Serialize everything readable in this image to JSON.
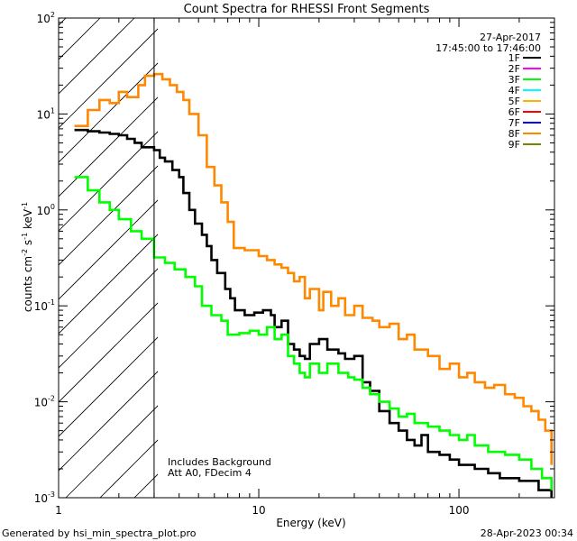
{
  "footer": {
    "left": "Generated by hsi_min_spectra_plot.pro",
    "right": "28-Apr-2023 00:34"
  },
  "chart_data": {
    "type": "line",
    "title": "Count Spectra for RHESSI Front Segments",
    "xlabel": "Energy (keV)",
    "ylabel_parts": {
      "base": "counts cm",
      "e1": "-2",
      "mid1": " s",
      "e2": "-1",
      "mid2": " keV",
      "e3": "-1"
    },
    "xscale": "log",
    "yscale": "log",
    "xlim": [
      1,
      300
    ],
    "ylim": [
      0.001,
      100
    ],
    "x_ticks": [
      {
        "v": 1,
        "label": "1"
      },
      {
        "v": 10,
        "label": "10"
      },
      {
        "v": 100,
        "label": "100"
      }
    ],
    "y_ticks": [
      {
        "v": 0.001,
        "base": "10",
        "exp": "-3"
      },
      {
        "v": 0.01,
        "base": "10",
        "exp": "-2"
      },
      {
        "v": 0.1,
        "base": "10",
        "exp": "-1"
      },
      {
        "v": 1,
        "base": "10",
        "exp": "0"
      },
      {
        "v": 10,
        "base": "10",
        "exp": "1"
      },
      {
        "v": 100,
        "base": "10",
        "exp": "2"
      }
    ],
    "hatched_region": {
      "x_range": [
        1,
        3
      ]
    },
    "vertical_line_x": 3,
    "legend": {
      "header": [
        "27-Apr-2017",
        "17:45:00 to 17:46:00"
      ],
      "position": "top-right",
      "entries": [
        {
          "name": "1F",
          "color": "#000000"
        },
        {
          "name": "2F",
          "color": "#ff00ff"
        },
        {
          "name": "3F",
          "color": "#00ff00"
        },
        {
          "name": "4F",
          "color": "#00ffff"
        },
        {
          "name": "5F",
          "color": "#ffb000"
        },
        {
          "name": "6F",
          "color": "#ff0000"
        },
        {
          "name": "7F",
          "color": "#0000ff"
        },
        {
          "name": "8F",
          "color": "#ff8800"
        },
        {
          "name": "9F",
          "color": "#808000"
        }
      ]
    },
    "annotation": [
      "Includes Background",
      "Att A0, FDecim 4"
    ],
    "series": [
      {
        "name": "8F",
        "color": "#ff8800",
        "points": [
          [
            1.2,
            7.5
          ],
          [
            1.4,
            11
          ],
          [
            1.6,
            14
          ],
          [
            1.8,
            13
          ],
          [
            2.0,
            17
          ],
          [
            2.2,
            15
          ],
          [
            2.5,
            20
          ],
          [
            2.7,
            25
          ],
          [
            3.0,
            26
          ],
          [
            3.3,
            23
          ],
          [
            3.6,
            20
          ],
          [
            3.9,
            17
          ],
          [
            4.2,
            14
          ],
          [
            4.5,
            10
          ],
          [
            5.0,
            6
          ],
          [
            5.5,
            2.8
          ],
          [
            6.0,
            1.8
          ],
          [
            6.5,
            1.2
          ],
          [
            7.0,
            0.75
          ],
          [
            7.5,
            0.4
          ],
          [
            8.5,
            0.38
          ],
          [
            10,
            0.33
          ],
          [
            11,
            0.3
          ],
          [
            12,
            0.27
          ],
          [
            13,
            0.25
          ],
          [
            14,
            0.22
          ],
          [
            15,
            0.18
          ],
          [
            16,
            0.2
          ],
          [
            17,
            0.12
          ],
          [
            18,
            0.15
          ],
          [
            20,
            0.09
          ],
          [
            21,
            0.14
          ],
          [
            23,
            0.1
          ],
          [
            25,
            0.12
          ],
          [
            27,
            0.08
          ],
          [
            30,
            0.1
          ],
          [
            33,
            0.075
          ],
          [
            37,
            0.07
          ],
          [
            40,
            0.06
          ],
          [
            45,
            0.065
          ],
          [
            50,
            0.045
          ],
          [
            55,
            0.05
          ],
          [
            60,
            0.035
          ],
          [
            70,
            0.03
          ],
          [
            80,
            0.022
          ],
          [
            90,
            0.025
          ],
          [
            100,
            0.018
          ],
          [
            110,
            0.02
          ],
          [
            120,
            0.016
          ],
          [
            135,
            0.014
          ],
          [
            150,
            0.015
          ],
          [
            170,
            0.012
          ],
          [
            190,
            0.011
          ],
          [
            210,
            0.009
          ],
          [
            230,
            0.008
          ],
          [
            250,
            0.0065
          ],
          [
            270,
            0.005
          ],
          [
            290,
            0.0022
          ]
        ]
      },
      {
        "name": "1F",
        "color": "#000000",
        "points": [
          [
            1.2,
            6.8
          ],
          [
            1.4,
            6.6
          ],
          [
            1.6,
            6.4
          ],
          [
            1.8,
            6.2
          ],
          [
            2.0,
            6.0
          ],
          [
            2.2,
            5.5
          ],
          [
            2.4,
            5.0
          ],
          [
            2.6,
            4.5
          ],
          [
            3.0,
            4.2
          ],
          [
            3.2,
            3.5
          ],
          [
            3.4,
            3.2
          ],
          [
            3.7,
            2.6
          ],
          [
            4.0,
            2.2
          ],
          [
            4.2,
            1.5
          ],
          [
            4.5,
            1.0
          ],
          [
            4.8,
            0.72
          ],
          [
            5.2,
            0.55
          ],
          [
            5.5,
            0.42
          ],
          [
            5.8,
            0.3
          ],
          [
            6.2,
            0.22
          ],
          [
            6.8,
            0.15
          ],
          [
            7.2,
            0.12
          ],
          [
            7.6,
            0.09
          ],
          [
            8.5,
            0.08
          ],
          [
            9.5,
            0.085
          ],
          [
            10.5,
            0.09
          ],
          [
            11.5,
            0.08
          ],
          [
            12,
            0.06
          ],
          [
            13,
            0.07
          ],
          [
            14,
            0.04
          ],
          [
            15,
            0.035
          ],
          [
            16,
            0.03
          ],
          [
            17,
            0.028
          ],
          [
            18,
            0.04
          ],
          [
            20,
            0.045
          ],
          [
            22,
            0.035
          ],
          [
            25,
            0.032
          ],
          [
            27,
            0.028
          ],
          [
            30,
            0.03
          ],
          [
            33,
            0.016
          ],
          [
            36,
            0.013
          ],
          [
            40,
            0.008
          ],
          [
            45,
            0.006
          ],
          [
            50,
            0.005
          ],
          [
            55,
            0.004
          ],
          [
            60,
            0.0035
          ],
          [
            65,
            0.0045
          ],
          [
            70,
            0.003
          ],
          [
            80,
            0.0028
          ],
          [
            90,
            0.0025
          ],
          [
            100,
            0.0022
          ],
          [
            120,
            0.002
          ],
          [
            140,
            0.0018
          ],
          [
            160,
            0.0016
          ],
          [
            200,
            0.0015
          ],
          [
            250,
            0.0012
          ],
          [
            290,
            0.001
          ]
        ]
      },
      {
        "name": "3F",
        "color": "#00ff00",
        "points": [
          [
            1.2,
            2.2
          ],
          [
            1.4,
            1.6
          ],
          [
            1.6,
            1.2
          ],
          [
            1.8,
            1.0
          ],
          [
            2.0,
            0.8
          ],
          [
            2.3,
            0.6
          ],
          [
            2.6,
            0.5
          ],
          [
            3.0,
            0.32
          ],
          [
            3.4,
            0.28
          ],
          [
            3.8,
            0.24
          ],
          [
            4.3,
            0.2
          ],
          [
            4.8,
            0.16
          ],
          [
            5.2,
            0.1
          ],
          [
            5.8,
            0.08
          ],
          [
            6.5,
            0.07
          ],
          [
            7.0,
            0.05
          ],
          [
            8.0,
            0.052
          ],
          [
            9.0,
            0.055
          ],
          [
            10,
            0.05
          ],
          [
            11,
            0.06
          ],
          [
            12,
            0.045
          ],
          [
            13,
            0.05
          ],
          [
            14,
            0.03
          ],
          [
            15,
            0.025
          ],
          [
            16,
            0.02
          ],
          [
            17,
            0.018
          ],
          [
            18,
            0.025
          ],
          [
            20,
            0.02
          ],
          [
            22,
            0.025
          ],
          [
            25,
            0.02
          ],
          [
            28,
            0.018
          ],
          [
            30,
            0.017
          ],
          [
            33,
            0.014
          ],
          [
            36,
            0.012
          ],
          [
            40,
            0.01
          ],
          [
            45,
            0.0085
          ],
          [
            50,
            0.007
          ],
          [
            55,
            0.0075
          ],
          [
            60,
            0.006
          ],
          [
            70,
            0.0055
          ],
          [
            80,
            0.005
          ],
          [
            90,
            0.0045
          ],
          [
            100,
            0.004
          ],
          [
            110,
            0.0045
          ],
          [
            120,
            0.0035
          ],
          [
            140,
            0.003
          ],
          [
            170,
            0.0028
          ],
          [
            200,
            0.0025
          ],
          [
            230,
            0.002
          ],
          [
            260,
            0.0016
          ],
          [
            290,
            0.0012
          ]
        ]
      }
    ]
  }
}
